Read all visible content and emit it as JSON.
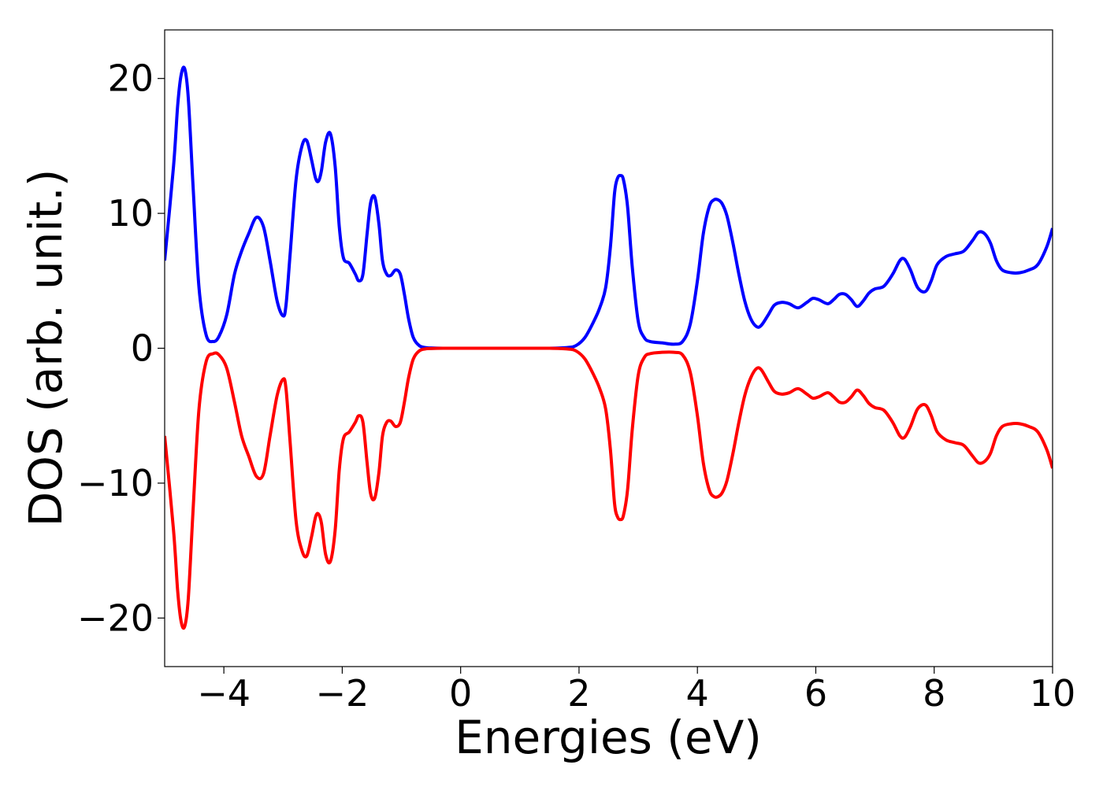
{
  "chart_data": {
    "type": "line",
    "title": "",
    "xlabel": "Energies (eV)",
    "ylabel": "DOS (arb. unit.)",
    "xlim": [
      -5,
      10
    ],
    "ylim": [
      -23.6,
      23.6
    ],
    "xticks": [
      -4,
      -2,
      0,
      2,
      4,
      6,
      8,
      10
    ],
    "yticks": [
      -20,
      -10,
      0,
      10,
      20
    ],
    "xtick_labels": [
      "−4",
      "−2",
      "0",
      "2",
      "4",
      "6",
      "8",
      "10"
    ],
    "ytick_labels": [
      "−20",
      "−10",
      "0",
      "10",
      "20"
    ],
    "grid": false,
    "legend": "none",
    "series": [
      {
        "color": "#0000ff",
        "x": [
          -5.0,
          -4.85,
          -4.78,
          -4.72,
          -4.66,
          -4.6,
          -4.52,
          -4.42,
          -4.3,
          -4.18,
          -4.08,
          -3.95,
          -3.82,
          -3.7,
          -3.58,
          -3.45,
          -3.33,
          -3.22,
          -3.1,
          -3.0,
          -2.95,
          -2.88,
          -2.78,
          -2.68,
          -2.6,
          -2.52,
          -2.45,
          -2.4,
          -2.35,
          -2.28,
          -2.2,
          -2.12,
          -2.05,
          -1.98,
          -1.88,
          -1.78,
          -1.72,
          -1.65,
          -1.58,
          -1.52,
          -1.45,
          -1.38,
          -1.32,
          -1.25,
          -1.18,
          -1.1,
          -1.02,
          -0.95,
          -0.88,
          -0.8,
          -0.7,
          -0.6,
          -0.5,
          -0.3,
          0.0,
          0.5,
          1.0,
          1.5,
          1.8,
          1.95,
          2.1,
          2.25,
          2.35,
          2.45,
          2.53,
          2.6,
          2.65,
          2.7,
          2.75,
          2.82,
          2.9,
          3.0,
          3.1,
          3.2,
          3.4,
          3.6,
          3.75,
          3.88,
          4.0,
          4.1,
          4.2,
          4.28,
          4.35,
          4.42,
          4.5,
          4.6,
          4.7,
          4.8,
          4.9,
          5.0,
          5.08,
          5.2,
          5.3,
          5.42,
          5.55,
          5.7,
          5.85,
          5.95,
          6.05,
          6.2,
          6.3,
          6.4,
          6.5,
          6.6,
          6.7,
          6.8,
          6.9,
          7.0,
          7.15,
          7.3,
          7.42,
          7.5,
          7.6,
          7.72,
          7.85,
          7.95,
          8.05,
          8.2,
          8.35,
          8.5,
          8.65,
          8.75,
          8.85,
          8.95,
          9.05,
          9.15,
          9.3,
          9.45,
          9.6,
          9.75,
          9.9,
          10.0
        ],
        "values": [
          6.5,
          13.5,
          18.0,
          20.3,
          20.7,
          18.5,
          12.0,
          4.5,
          1.0,
          0.5,
          0.9,
          2.5,
          5.5,
          7.2,
          8.5,
          9.7,
          9.0,
          6.5,
          3.5,
          2.4,
          3.2,
          7.0,
          12.5,
          15.0,
          15.4,
          14.0,
          12.6,
          12.4,
          13.2,
          15.3,
          15.9,
          13.5,
          9.0,
          6.7,
          6.3,
          5.5,
          5.0,
          5.5,
          8.5,
          10.8,
          11.2,
          9.2,
          6.5,
          5.5,
          5.4,
          5.8,
          5.5,
          4.0,
          2.2,
          0.8,
          0.2,
          0.05,
          0.02,
          0.0,
          0.0,
          0.0,
          0.0,
          0.0,
          0.05,
          0.2,
          0.8,
          2.0,
          3.0,
          4.5,
          7.5,
          11.5,
          12.6,
          12.8,
          12.5,
          10.5,
          6.0,
          2.0,
          0.8,
          0.5,
          0.4,
          0.3,
          0.5,
          1.8,
          5.0,
          8.5,
          10.5,
          11.0,
          11.0,
          10.7,
          9.8,
          7.8,
          5.5,
          3.5,
          2.2,
          1.6,
          1.7,
          2.5,
          3.2,
          3.4,
          3.3,
          3.0,
          3.4,
          3.7,
          3.6,
          3.3,
          3.6,
          4.0,
          4.0,
          3.6,
          3.1,
          3.5,
          4.1,
          4.4,
          4.6,
          5.5,
          6.5,
          6.6,
          5.8,
          4.5,
          4.2,
          5.0,
          6.2,
          6.8,
          7.0,
          7.2,
          8.0,
          8.6,
          8.5,
          7.8,
          6.5,
          5.8,
          5.6,
          5.6,
          5.8,
          6.2,
          7.5,
          8.9
        ]
      },
      {
        "color": "#ff0000",
        "x": [
          -5.0,
          -4.85,
          -4.78,
          -4.72,
          -4.66,
          -4.6,
          -4.52,
          -4.42,
          -4.3,
          -4.18,
          -4.08,
          -3.95,
          -3.82,
          -3.7,
          -3.58,
          -3.45,
          -3.33,
          -3.22,
          -3.1,
          -3.0,
          -2.95,
          -2.88,
          -2.78,
          -2.68,
          -2.6,
          -2.52,
          -2.45,
          -2.4,
          -2.35,
          -2.28,
          -2.2,
          -2.12,
          -2.05,
          -1.98,
          -1.88,
          -1.78,
          -1.72,
          -1.65,
          -1.58,
          -1.52,
          -1.45,
          -1.38,
          -1.32,
          -1.25,
          -1.18,
          -1.1,
          -1.02,
          -0.95,
          -0.88,
          -0.8,
          -0.7,
          -0.6,
          -0.5,
          -0.3,
          0.0,
          0.5,
          1.0,
          1.5,
          1.8,
          1.95,
          2.1,
          2.25,
          2.35,
          2.45,
          2.53,
          2.6,
          2.65,
          2.7,
          2.75,
          2.82,
          2.9,
          3.0,
          3.1,
          3.2,
          3.4,
          3.6,
          3.75,
          3.88,
          4.0,
          4.1,
          4.2,
          4.28,
          4.35,
          4.42,
          4.5,
          4.6,
          4.7,
          4.8,
          4.9,
          5.0,
          5.08,
          5.2,
          5.3,
          5.42,
          5.55,
          5.7,
          5.85,
          5.95,
          6.05,
          6.2,
          6.3,
          6.4,
          6.5,
          6.6,
          6.7,
          6.8,
          6.9,
          7.0,
          7.15,
          7.3,
          7.42,
          7.5,
          7.6,
          7.72,
          7.85,
          7.95,
          8.05,
          8.2,
          8.35,
          8.5,
          8.65,
          8.75,
          8.85,
          8.95,
          9.05,
          9.15,
          9.3,
          9.45,
          9.6,
          9.75,
          9.9,
          10.0
        ],
        "values": [
          -6.5,
          -13.5,
          -18.0,
          -20.3,
          -20.6,
          -18.5,
          -12.0,
          -4.5,
          -1.0,
          -0.4,
          -0.5,
          -1.5,
          -4.0,
          -6.5,
          -8.0,
          -9.5,
          -9.3,
          -6.5,
          -3.5,
          -2.3,
          -3.0,
          -7.0,
          -12.8,
          -15.0,
          -15.4,
          -14.0,
          -12.5,
          -12.3,
          -13.0,
          -15.3,
          -15.8,
          -13.5,
          -9.0,
          -6.7,
          -6.2,
          -5.5,
          -5.0,
          -5.5,
          -8.5,
          -10.8,
          -11.1,
          -9.2,
          -6.5,
          -5.5,
          -5.4,
          -5.8,
          -5.5,
          -4.0,
          -2.2,
          -0.8,
          -0.2,
          -0.05,
          -0.02,
          0.0,
          0.0,
          0.0,
          0.0,
          0.0,
          -0.05,
          -0.2,
          -0.8,
          -2.0,
          -3.0,
          -4.5,
          -7.5,
          -11.5,
          -12.5,
          -12.7,
          -12.4,
          -10.5,
          -6.0,
          -2.0,
          -0.7,
          -0.4,
          -0.3,
          -0.3,
          -0.5,
          -1.8,
          -5.0,
          -8.5,
          -10.5,
          -11.0,
          -11.0,
          -10.7,
          -9.8,
          -7.8,
          -5.5,
          -3.5,
          -2.2,
          -1.5,
          -1.6,
          -2.5,
          -3.2,
          -3.4,
          -3.3,
          -3.0,
          -3.4,
          -3.7,
          -3.6,
          -3.3,
          -3.6,
          -4.0,
          -4.0,
          -3.6,
          -3.1,
          -3.5,
          -4.1,
          -4.4,
          -4.6,
          -5.5,
          -6.5,
          -6.6,
          -5.8,
          -4.5,
          -4.2,
          -5.0,
          -6.2,
          -6.8,
          -7.0,
          -7.2,
          -8.0,
          -8.5,
          -8.4,
          -7.8,
          -6.5,
          -5.8,
          -5.6,
          -5.6,
          -5.8,
          -6.2,
          -7.5,
          -8.9
        ]
      }
    ]
  }
}
